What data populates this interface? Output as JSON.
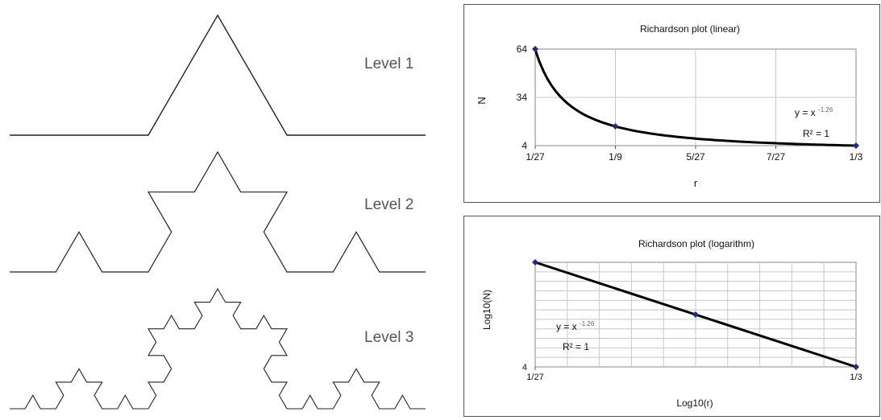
{
  "koch": {
    "levels": [
      {
        "label": "Level 1",
        "depth": 1
      },
      {
        "label": "Level 2",
        "depth": 2
      },
      {
        "label": "Level 3",
        "depth": 3
      }
    ],
    "line_color": "#222222"
  },
  "chart_data": [
    {
      "type": "line",
      "title": "Richardson plot (linear)",
      "xlabel": "r",
      "ylabel": "N",
      "x_ticks": [
        "1/27",
        "1/9",
        "5/27",
        "7/27",
        "1/3"
      ],
      "y_ticks": [
        "4",
        "34",
        "64"
      ],
      "xlim": [
        0.037037,
        0.333333
      ],
      "ylim": [
        4,
        64
      ],
      "grid": true,
      "series": [
        {
          "points": [
            {
              "x": 0.037037,
              "y": 64
            },
            {
              "x": 0.111111,
              "y": 16
            },
            {
              "x": 0.333333,
              "y": 4
            }
          ],
          "marker_color": "#1f2a8a",
          "line_color": "#000000"
        }
      ],
      "annotations": {
        "equation": "y = x",
        "equation_exponent": "-1.26",
        "r2": "R² = 1"
      }
    },
    {
      "type": "line",
      "title": "Richardson plot (logarithm)",
      "xlabel": "Log10(r)",
      "ylabel": "Log10(N)",
      "x_ticks": [
        "1/27",
        "1/3"
      ],
      "y_ticks": [
        "4"
      ],
      "log_scale": true,
      "xlim": [
        0.037037,
        0.333333
      ],
      "ylim": [
        4,
        64
      ],
      "grid": true,
      "series": [
        {
          "points": [
            {
              "x": 0.037037,
              "y": 64
            },
            {
              "x": 0.111111,
              "y": 16
            },
            {
              "x": 0.333333,
              "y": 4
            }
          ],
          "marker_color": "#1f2a8a",
          "line_color": "#000000"
        }
      ],
      "annotations": {
        "equation": "y = x",
        "equation_exponent": "-1.26",
        "r2": "R² = 1"
      }
    }
  ]
}
